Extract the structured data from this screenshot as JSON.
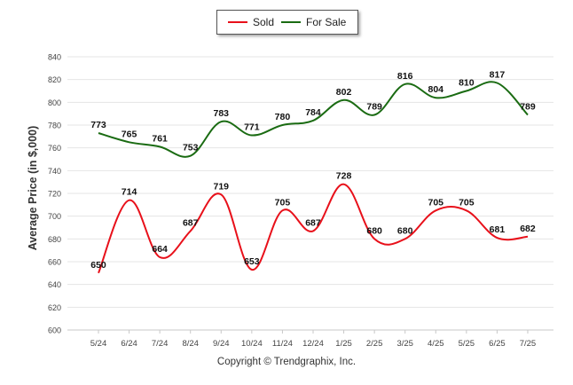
{
  "chart_data": {
    "type": "line",
    "title": "",
    "xlabel": "",
    "ylabel": "Average Price (in $,000)",
    "categories": [
      "5/24",
      "6/24",
      "7/24",
      "8/24",
      "9/24",
      "10/24",
      "11/24",
      "12/24",
      "1/25",
      "2/25",
      "3/25",
      "4/25",
      "5/25",
      "6/25",
      "7/25"
    ],
    "ylim": [
      600,
      840
    ],
    "yticks": [
      600,
      620,
      640,
      660,
      680,
      700,
      720,
      740,
      760,
      780,
      800,
      820,
      840
    ],
    "grid": true,
    "legend_position": "top-center",
    "series": [
      {
        "name": "Sold",
        "color": "#e8101a",
        "values": [
          650,
          714,
          664,
          687,
          719,
          653,
          705,
          687,
          728,
          680,
          680,
          705,
          705,
          681,
          682
        ]
      },
      {
        "name": "For Sale",
        "color": "#1a6b12",
        "values": [
          773,
          765,
          761,
          753,
          783,
          771,
          780,
          784,
          802,
          789,
          816,
          804,
          810,
          817,
          789
        ]
      }
    ]
  },
  "footer": {
    "copyright": "Copyright © Trendgraphix, Inc."
  }
}
